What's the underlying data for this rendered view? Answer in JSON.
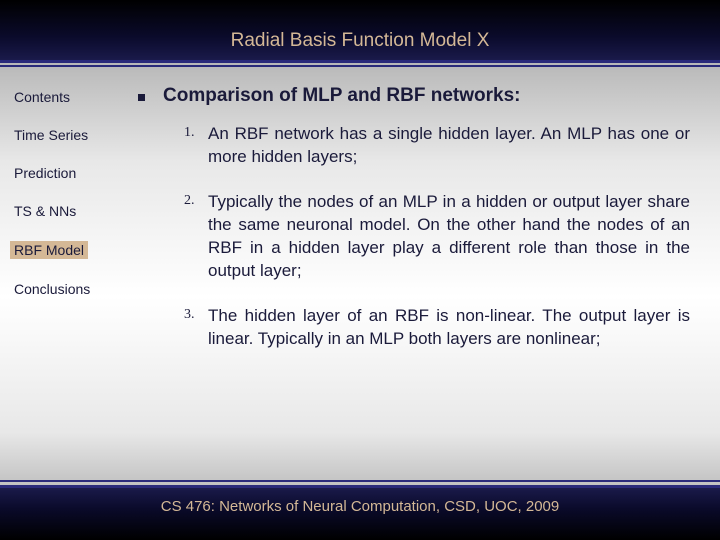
{
  "colors": {
    "accent_text": "#d4b896",
    "dark_text": "#1a1a3a",
    "header_bg_top": "#000000",
    "header_bg_bottom": "#1a1a4a",
    "divider": "#2a2a7a"
  },
  "header": {
    "title": "Radial Basis Function Model X"
  },
  "sidebar": {
    "items": [
      {
        "label": "Contents",
        "active": false
      },
      {
        "label": "Time Series",
        "active": false
      },
      {
        "label": "Prediction",
        "active": false
      },
      {
        "label": "TS & NNs",
        "active": false
      },
      {
        "label": "RBF Model",
        "active": true
      },
      {
        "label": "Conclusions",
        "active": false
      }
    ]
  },
  "content": {
    "heading": "Comparison of MLP and RBF networks:",
    "points": [
      {
        "num": "1.",
        "text": "An RBF network has a single hidden layer. An MLP has one or more hidden layers;"
      },
      {
        "num": "2.",
        "text": "Typically the nodes of an MLP in a hidden or output layer share the same neuronal model. On the other hand the nodes of an RBF in a hidden layer play a different role than those in the output layer;"
      },
      {
        "num": "3.",
        "text": "The hidden layer of an RBF is non-linear. The output layer is linear. Typically in an MLP both layers are nonlinear;"
      }
    ]
  },
  "footer": {
    "text": "CS 476: Networks of Neural Computation, CSD, UOC, 2009"
  }
}
